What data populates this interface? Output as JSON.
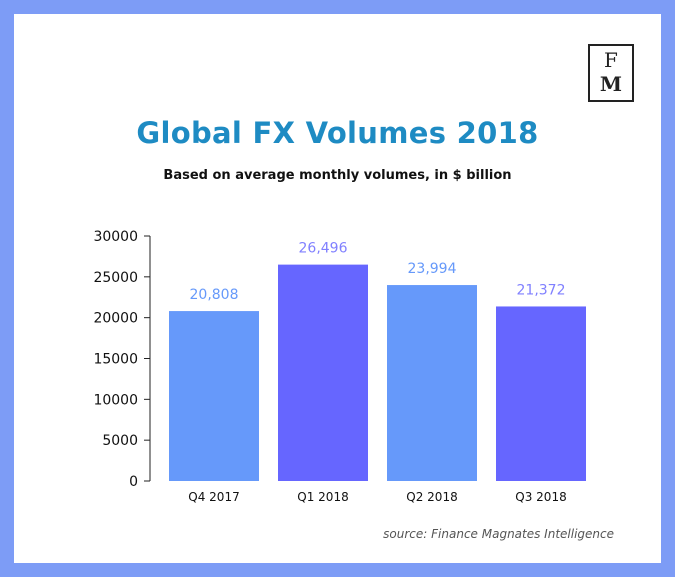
{
  "logo": {
    "top": "F",
    "bottom": "M"
  },
  "colors": {
    "frame": "#7d9cf6",
    "title": "#1e8bc3",
    "bar_light": "#6699fa",
    "bar_dark": "#6666ff",
    "label_light": "#6699fa",
    "label_dark": "#8080ff",
    "axis": "#222222"
  },
  "chart_data": {
    "type": "bar",
    "title": "Global FX Volumes 2018",
    "subtitle": "Based on average monthly volumes, in $ billion",
    "categories": [
      "Q4 2017",
      "Q1 2018",
      "Q2 2018",
      "Q3 2018"
    ],
    "values": [
      20808,
      26496,
      23994,
      21372
    ],
    "value_labels": [
      "20,808",
      "26,496",
      "23,994",
      "21,372"
    ],
    "yticks": [
      0,
      5000,
      10000,
      15000,
      20000,
      25000,
      30000
    ],
    "ylim": [
      0,
      30000
    ],
    "xlabel": "",
    "ylabel": "",
    "grid": false,
    "source": "source: Finance Magnates Intelligence"
  }
}
